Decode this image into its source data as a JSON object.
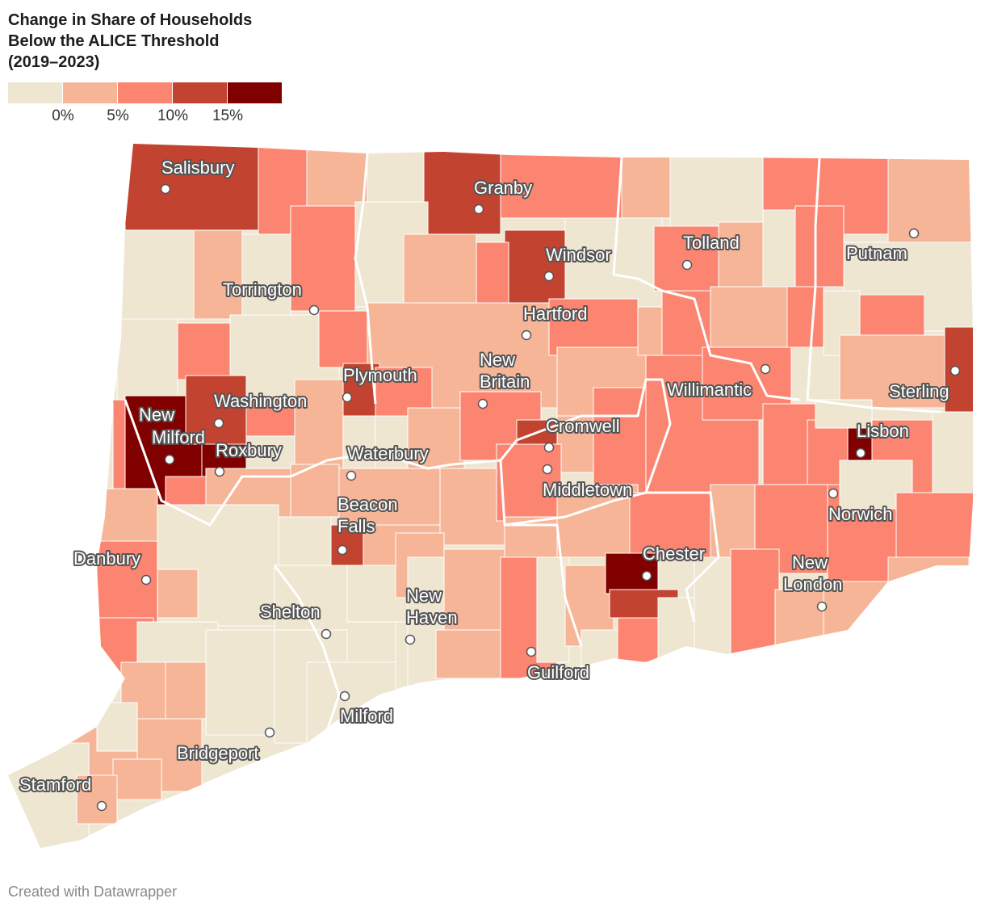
{
  "title_lines": [
    "Change in Share of Households",
    "Below the ALICE Threshold",
    "(2019–2023)"
  ],
  "legend": {
    "colors": [
      "#eee6d0",
      "#f7b598",
      "#fb8570",
      "#c2432f",
      "#800000"
    ],
    "ticks": [
      "0%",
      "5%",
      "10%",
      "15%"
    ]
  },
  "footer": "Created with Datawrapper",
  "cities": [
    {
      "name": "salisbury",
      "lines": [
        "Salisbury"
      ]
    },
    {
      "name": "granby",
      "lines": [
        "Granby"
      ]
    },
    {
      "name": "tolland",
      "lines": [
        "Tolland"
      ]
    },
    {
      "name": "putnam",
      "lines": [
        "Putnam"
      ]
    },
    {
      "name": "windsor",
      "lines": [
        "Windsor"
      ]
    },
    {
      "name": "torrington",
      "lines": [
        "Torrington"
      ]
    },
    {
      "name": "hartford",
      "lines": [
        "Hartford"
      ]
    },
    {
      "name": "new-britain",
      "lines": [
        "New",
        "Britain"
      ]
    },
    {
      "name": "plymouth",
      "lines": [
        "Plymouth"
      ]
    },
    {
      "name": "willimantic",
      "lines": [
        "Willimantic"
      ]
    },
    {
      "name": "sterling",
      "lines": [
        "Sterling"
      ]
    },
    {
      "name": "washington",
      "lines": [
        "Washington"
      ]
    },
    {
      "name": "new-milford",
      "lines": [
        "New",
        "Milford"
      ]
    },
    {
      "name": "cromwell",
      "lines": [
        "Cromwell"
      ]
    },
    {
      "name": "lisbon",
      "lines": [
        "Lisbon"
      ]
    },
    {
      "name": "roxbury",
      "lines": [
        "Roxbury"
      ]
    },
    {
      "name": "waterbury",
      "lines": [
        "Waterbury"
      ]
    },
    {
      "name": "middletown",
      "lines": [
        "Middletown"
      ]
    },
    {
      "name": "beacon-falls",
      "lines": [
        "Beacon",
        "Falls"
      ]
    },
    {
      "name": "norwich",
      "lines": [
        "Norwich"
      ]
    },
    {
      "name": "danbury",
      "lines": [
        "Danbury"
      ]
    },
    {
      "name": "chester",
      "lines": [
        "Chester"
      ]
    },
    {
      "name": "new-london",
      "lines": [
        "New",
        "London"
      ]
    },
    {
      "name": "new-haven",
      "lines": [
        "New",
        "Haven"
      ]
    },
    {
      "name": "shelton",
      "lines": [
        "Shelton"
      ]
    },
    {
      "name": "guilford",
      "lines": [
        "Guilford"
      ]
    },
    {
      "name": "milford",
      "lines": [
        "Milford"
      ]
    },
    {
      "name": "bridgeport",
      "lines": [
        "Bridgeport"
      ]
    },
    {
      "name": "stamford",
      "lines": [
        "Stamford"
      ]
    }
  ]
}
